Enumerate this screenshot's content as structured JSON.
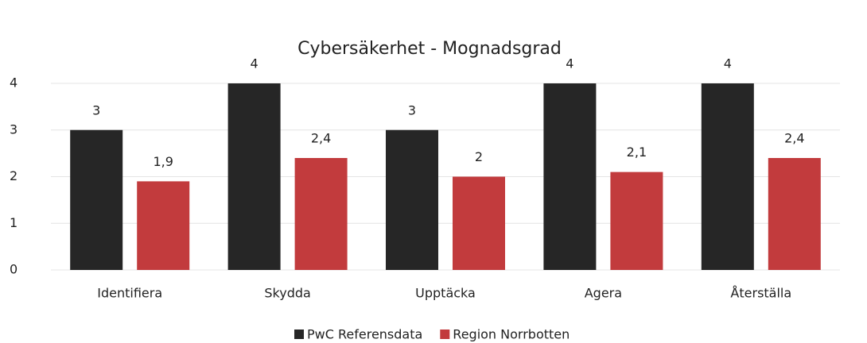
{
  "chart_data": {
    "type": "bar",
    "title": "Cybersäkerhet - Mognadsgrad",
    "categories": [
      "Identifiera",
      "Skydda",
      "Upptäcka",
      "Agera",
      "Återställa"
    ],
    "series": [
      {
        "name": "PwC Referensdata",
        "color": "#262626",
        "values": [
          3,
          4,
          3,
          4,
          4
        ]
      },
      {
        "name": "Region Norrbotten",
        "color": "#c23b3d",
        "values": [
          1.9,
          2.4,
          2,
          2.1,
          2.4
        ],
        "value_labels": [
          "1,9",
          "2,4",
          "2",
          "2,1",
          "2,4"
        ]
      }
    ],
    "ylim": [
      0,
      4
    ],
    "yticks": [
      0,
      1,
      2,
      3,
      4
    ],
    "grid": true,
    "legend": "bottom"
  }
}
